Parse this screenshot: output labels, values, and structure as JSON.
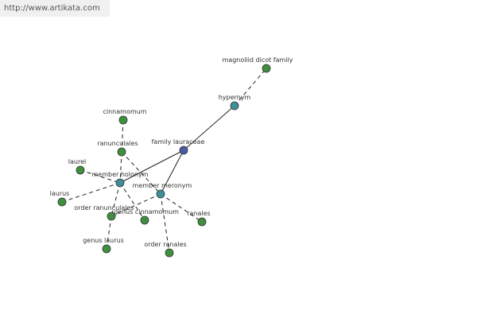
{
  "header": {
    "url": "http://www.artikata.com"
  },
  "nodes": [
    {
      "label": "family lauraceae"
    },
    {
      "label": "hypernym"
    },
    {
      "label": "magnoliid dicot family"
    },
    {
      "label": "member holonym"
    },
    {
      "label": "member meronym"
    },
    {
      "label": "cinnamomum"
    },
    {
      "label": "ranunculales"
    },
    {
      "label": "laurel"
    },
    {
      "label": "laurus"
    },
    {
      "label": "order ranunculales"
    },
    {
      "label": "genus laurus"
    },
    {
      "label": "genus cinnamomum"
    },
    {
      "label": "ranales"
    },
    {
      "label": "order ranales"
    }
  ]
}
